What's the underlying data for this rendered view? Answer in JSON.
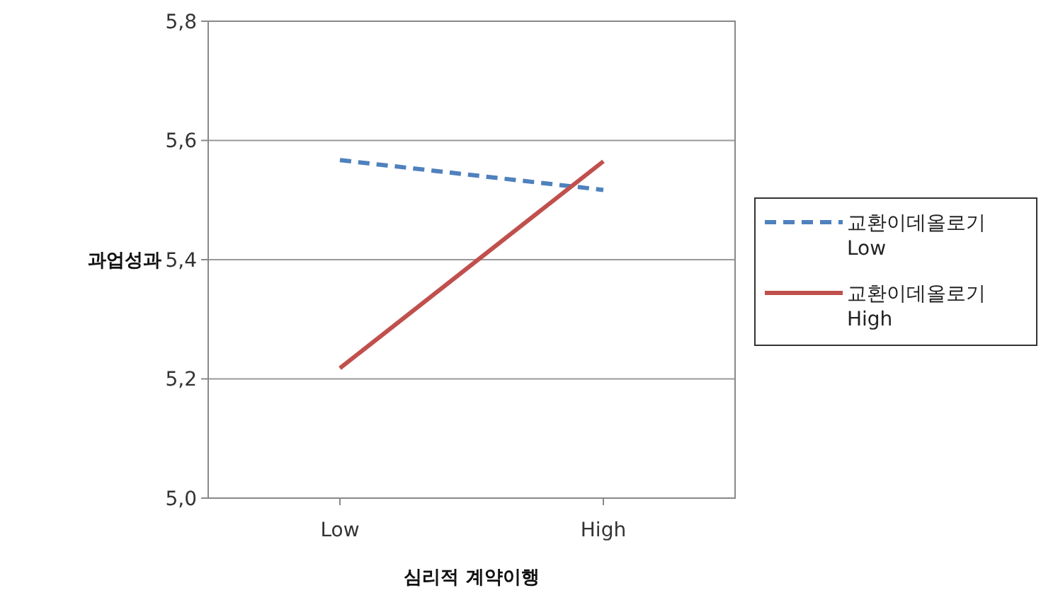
{
  "chart_data": {
    "type": "line",
    "xlabel": "심리적 계약이행",
    "ylabel": "과업성과",
    "categories": [
      "Low",
      "High"
    ],
    "series": [
      {
        "name": "교환이데올로기 Low",
        "color": "#4f81bd",
        "values": [
          5.567,
          5.517
        ],
        "line_style": "dashed"
      },
      {
        "name": "교환이데올로기 High",
        "color": "#c0504d",
        "values": [
          5.218,
          5.565
        ],
        "line_style": "solid"
      }
    ],
    "ylim": [
      5.0,
      5.8
    ],
    "yticks": [
      {
        "value": 5.0,
        "label": "5,0"
      },
      {
        "value": 5.2,
        "label": "5,2"
      },
      {
        "value": 5.4,
        "label": "5,4"
      },
      {
        "value": 5.6,
        "label": "5,6"
      },
      {
        "value": 5.8,
        "label": "5,8"
      }
    ],
    "grid": "y",
    "legend": "right",
    "marker": "none"
  }
}
